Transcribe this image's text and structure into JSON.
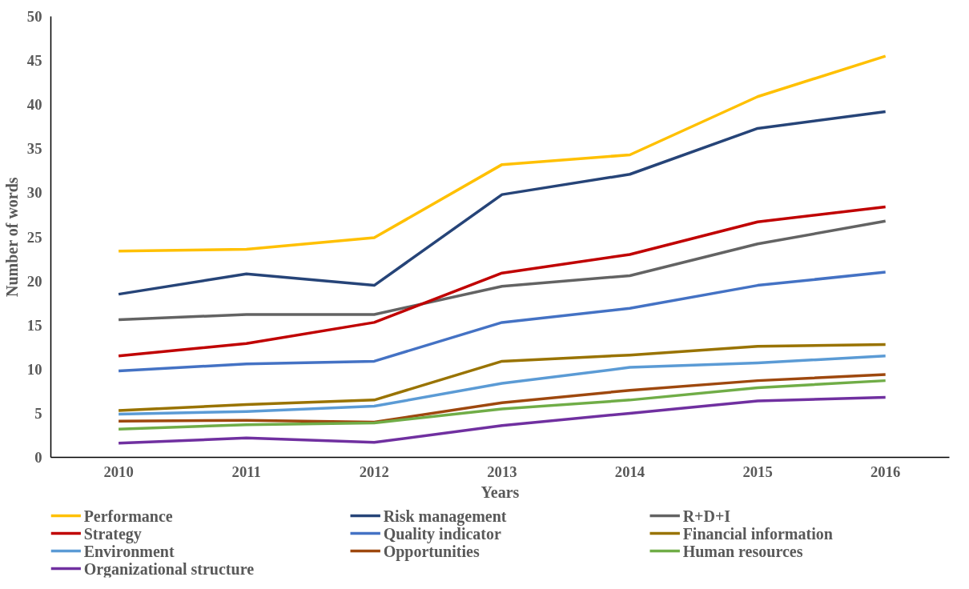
{
  "chart_data": {
    "type": "line",
    "xlabel": "Years",
    "ylabel": "Number of words",
    "categories": [
      "2010",
      "2011",
      "2012",
      "2013",
      "2014",
      "2015",
      "2016"
    ],
    "ylim": [
      0,
      50
    ],
    "yticks": [
      0,
      5,
      10,
      15,
      20,
      25,
      30,
      35,
      40,
      45,
      50
    ],
    "grid": false,
    "legend": "bottom",
    "marker": "none",
    "line_style": "solid",
    "series": [
      {
        "name": "Performance",
        "color": "#ffc000",
        "values": [
          23.4,
          23.6,
          24.9,
          33.2,
          34.3,
          40.9,
          45.5
        ]
      },
      {
        "name": "Risk management",
        "color": "#264478",
        "values": [
          18.5,
          20.8,
          19.5,
          29.8,
          32.1,
          37.3,
          39.2
        ]
      },
      {
        "name": "R+D+I",
        "color": "#636363",
        "values": [
          15.6,
          16.2,
          16.2,
          19.4,
          20.6,
          24.2,
          26.8
        ]
      },
      {
        "name": "Strategy",
        "color": "#c00000",
        "values": [
          11.5,
          12.9,
          15.3,
          20.9,
          23.0,
          26.7,
          28.4
        ]
      },
      {
        "name": "Quality indicator",
        "color": "#4472c4",
        "values": [
          9.8,
          10.6,
          10.9,
          15.3,
          16.9,
          19.5,
          21.0
        ]
      },
      {
        "name": "Financial information",
        "color": "#997300",
        "values": [
          5.3,
          6.0,
          6.5,
          10.9,
          11.6,
          12.6,
          12.8
        ]
      },
      {
        "name": "Environment",
        "color": "#5b9bd5",
        "values": [
          4.9,
          5.2,
          5.8,
          8.4,
          10.2,
          10.7,
          11.5
        ]
      },
      {
        "name": "Opportunities",
        "color": "#9e480e",
        "values": [
          4.1,
          4.2,
          4.0,
          6.2,
          7.6,
          8.7,
          9.4
        ]
      },
      {
        "name": "Human resources",
        "color": "#70ad47",
        "values": [
          3.2,
          3.7,
          3.9,
          5.5,
          6.5,
          7.9,
          8.7
        ]
      },
      {
        "name": "Organizational structure",
        "color": "#7030a0",
        "values": [
          1.6,
          2.2,
          1.7,
          3.6,
          5.0,
          6.4,
          6.8
        ]
      }
    ]
  }
}
